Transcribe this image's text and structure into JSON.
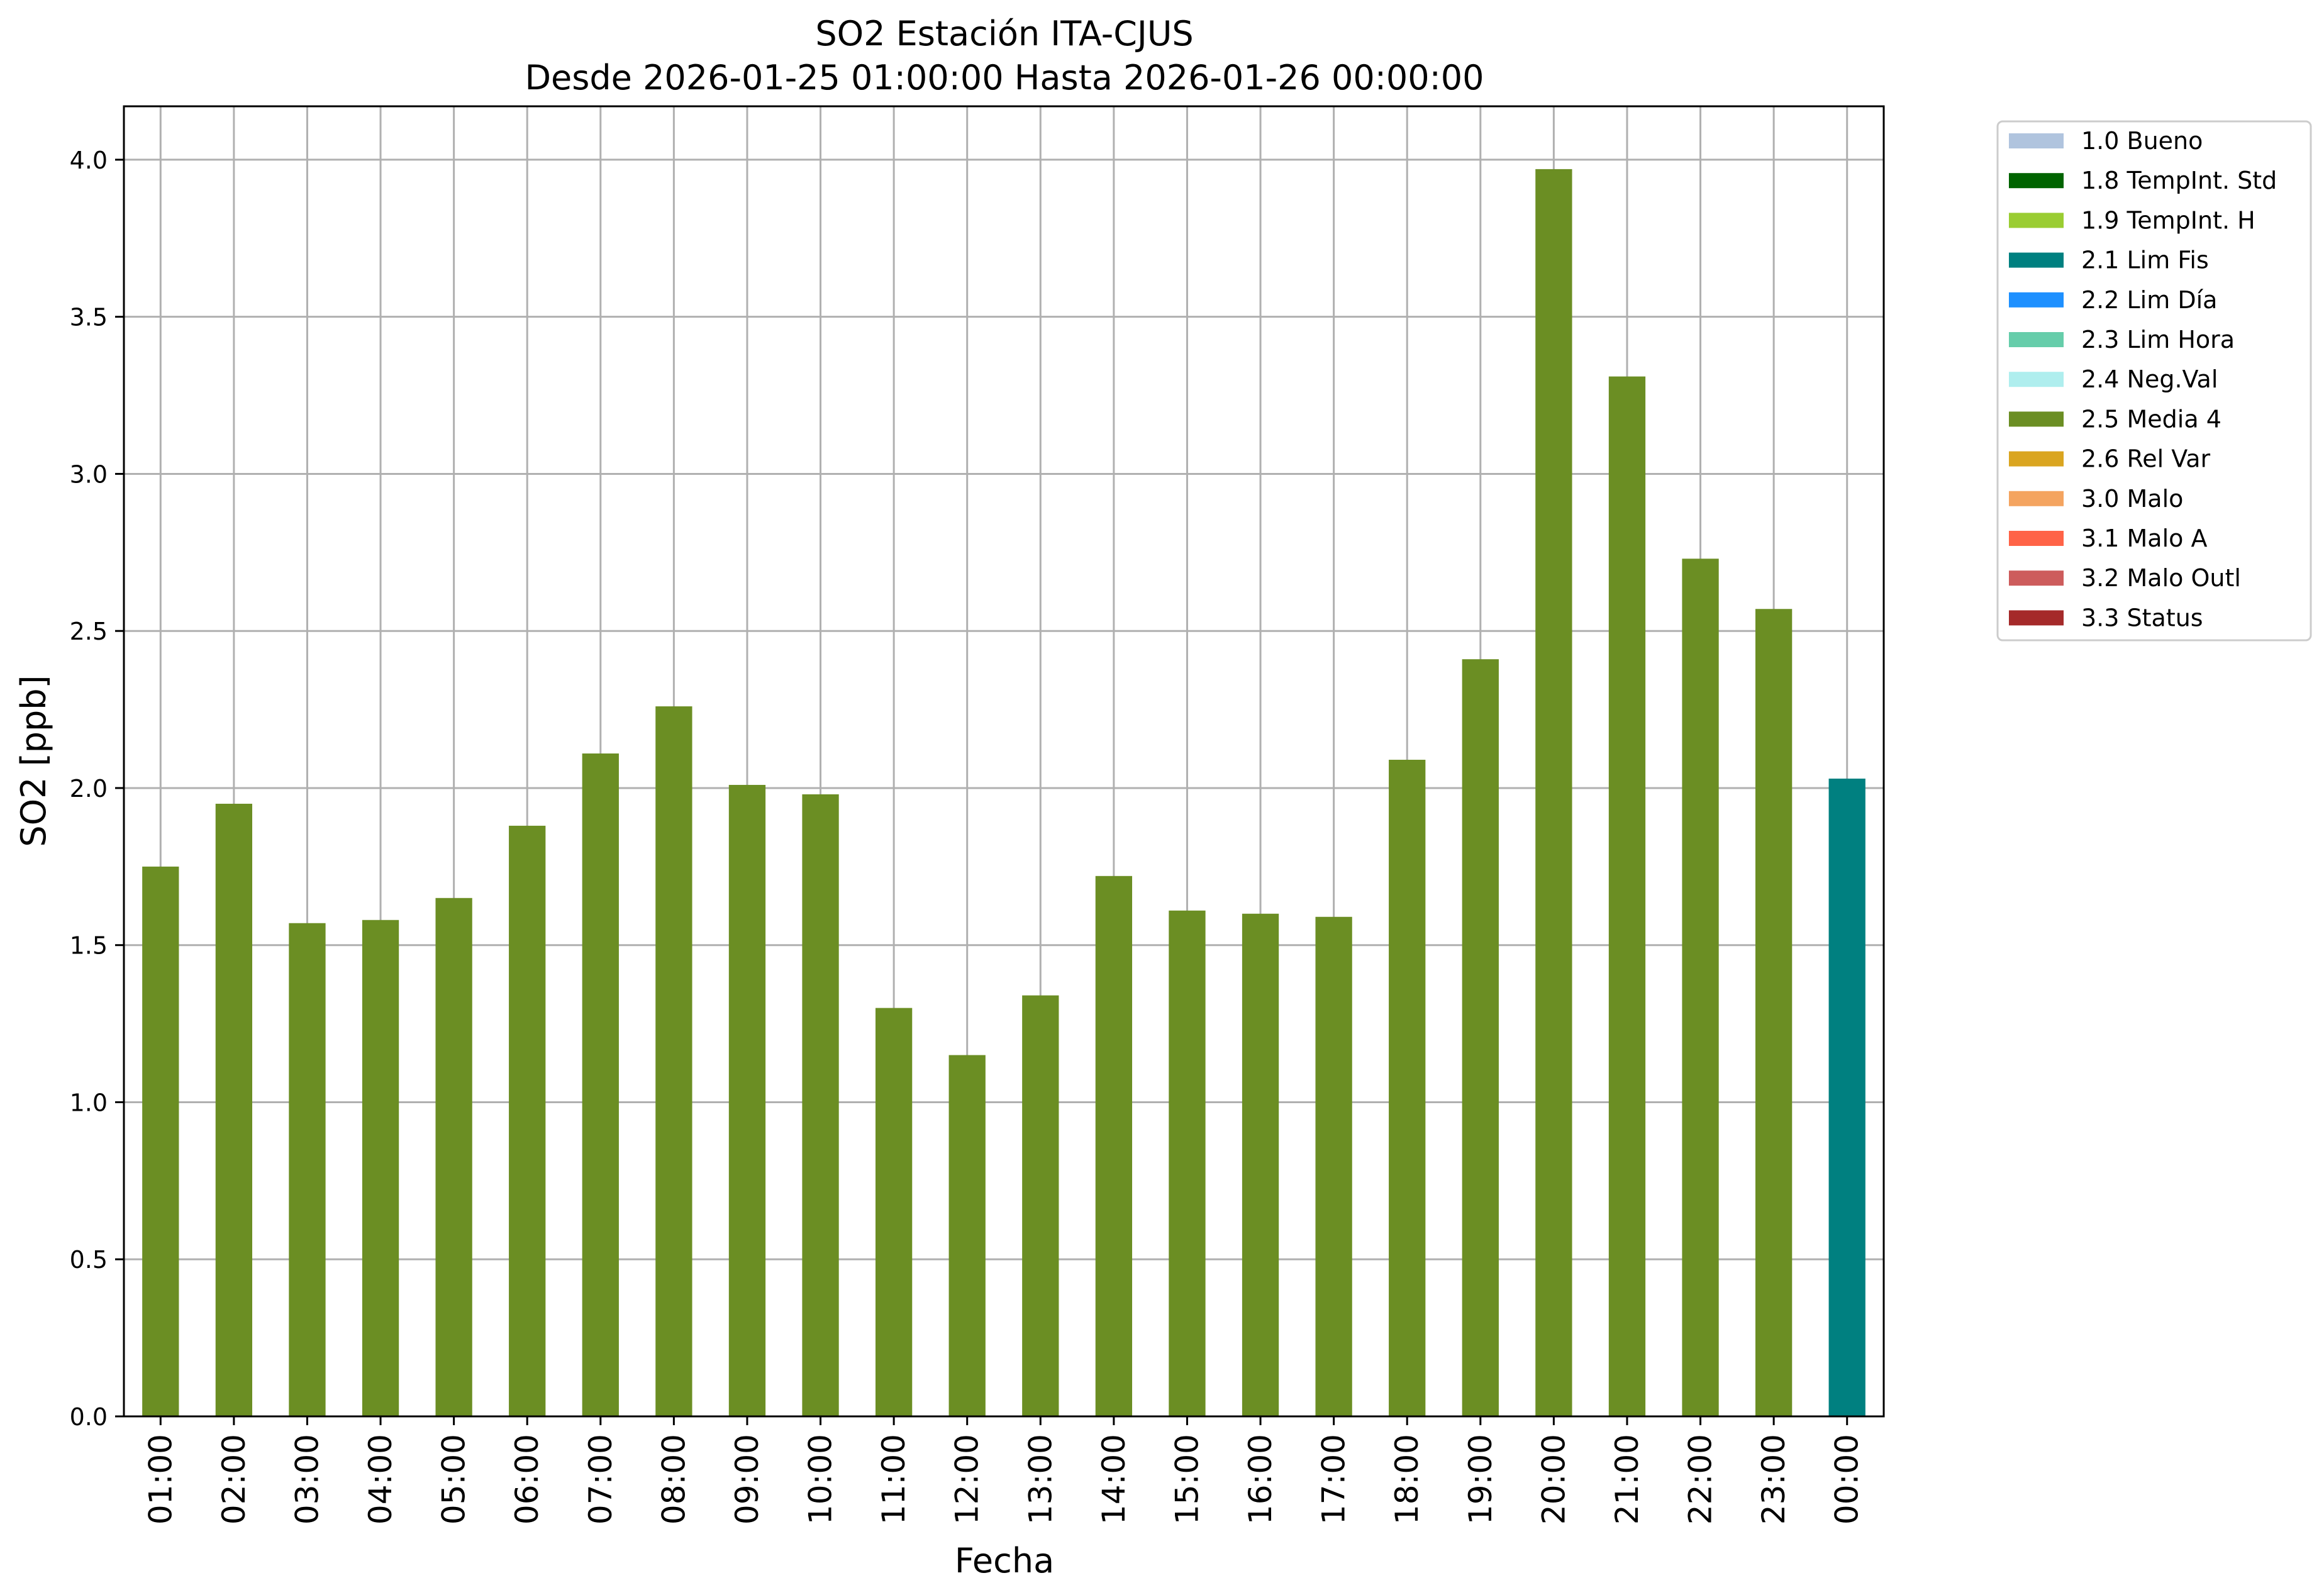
{
  "chart_data": {
    "type": "bar",
    "title": "SO2 Estación ITA-CJUS",
    "subtitle": "Desde 2026-01-25 01:00:00 Hasta 2026-01-26 00:00:00",
    "xlabel": "Fecha",
    "ylabel": "SO2 [ppb]",
    "ylim": [
      0,
      4.17
    ],
    "yticks": [
      "0.0",
      "0.5",
      "1.0",
      "1.5",
      "2.0",
      "2.5",
      "3.0",
      "3.5",
      "4.0"
    ],
    "grid": true,
    "legend_position": "outside-top-right",
    "categories": [
      "01:00",
      "02:00",
      "03:00",
      "04:00",
      "05:00",
      "06:00",
      "07:00",
      "08:00",
      "09:00",
      "10:00",
      "11:00",
      "12:00",
      "13:00",
      "14:00",
      "15:00",
      "16:00",
      "17:00",
      "18:00",
      "19:00",
      "20:00",
      "21:00",
      "22:00",
      "23:00",
      "00:00"
    ],
    "values": [
      1.75,
      1.95,
      1.57,
      1.58,
      1.65,
      1.88,
      2.11,
      2.26,
      2.01,
      1.98,
      1.3,
      1.15,
      1.34,
      1.72,
      1.61,
      1.6,
      1.59,
      2.09,
      2.41,
      3.97,
      3.31,
      2.73,
      2.57,
      2.03
    ],
    "bar_flags": [
      "2.5 Media 4",
      "2.5 Media 4",
      "2.5 Media 4",
      "2.5 Media 4",
      "2.5 Media 4",
      "2.5 Media 4",
      "2.5 Media 4",
      "2.5 Media 4",
      "2.5 Media 4",
      "2.5 Media 4",
      "2.5 Media 4",
      "2.5 Media 4",
      "2.5 Media 4",
      "2.5 Media 4",
      "2.5 Media 4",
      "2.5 Media 4",
      "2.5 Media 4",
      "2.5 Media 4",
      "2.5 Media 4",
      "2.5 Media 4",
      "2.5 Media 4",
      "2.5 Media 4",
      "2.5 Media 4",
      "2.1 Lim Fis"
    ],
    "legend": [
      {
        "label": "1.0 Bueno",
        "color": "#b0c4de"
      },
      {
        "label": "1.8 TempInt. Std",
        "color": "#006400"
      },
      {
        "label": "1.9 TempInt. H",
        "color": "#9acd32"
      },
      {
        "label": "2.1 Lim Fis",
        "color": "#008080"
      },
      {
        "label": "2.2 Lim Día",
        "color": "#1e90ff"
      },
      {
        "label": "2.3 Lim Hora",
        "color": "#66cdaa"
      },
      {
        "label": "2.4 Neg.Val",
        "color": "#afeeee"
      },
      {
        "label": "2.5 Media 4",
        "color": "#6b8e23"
      },
      {
        "label": "2.6 Rel Var",
        "color": "#daa520"
      },
      {
        "label": "3.0 Malo",
        "color": "#f4a460"
      },
      {
        "label": "3.1 Malo A",
        "color": "#ff6347"
      },
      {
        "label": "3.2 Malo Outl",
        "color": "#cd5c5c"
      },
      {
        "label": "3.3 Status",
        "color": "#a52a2a"
      }
    ]
  }
}
